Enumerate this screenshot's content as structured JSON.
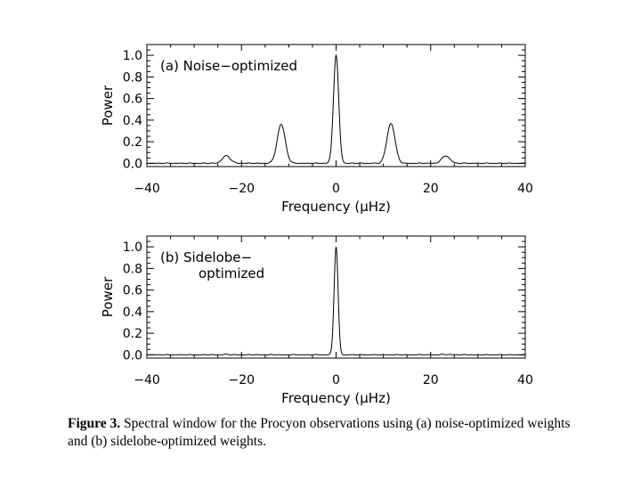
{
  "chart_data": [
    {
      "type": "line",
      "panel": "a",
      "annotation": [
        "(a) Noise−optimized"
      ],
      "xlabel": "Frequency (μHz)",
      "ylabel": "Power",
      "xlim": [
        -40,
        40
      ],
      "ylim": [
        -0.03,
        1.1
      ],
      "xticks": [
        -40,
        -20,
        0,
        20,
        40
      ],
      "xtick_labels": [
        "−40",
        "−20",
        "0",
        "20",
        "40"
      ],
      "yticks": [
        0.0,
        0.2,
        0.4,
        0.6,
        0.8,
        1.0
      ],
      "ytick_labels": [
        "0.0",
        "0.2",
        "0.4",
        "0.6",
        "0.8",
        "1.0"
      ],
      "grid": false,
      "peaks": [
        {
          "x": -23.2,
          "y": 0.07
        },
        {
          "x": -11.6,
          "y": 0.36
        },
        {
          "x": 0,
          "y": 1.0
        },
        {
          "x": 11.6,
          "y": 0.37
        },
        {
          "x": 23.2,
          "y": 0.07
        }
      ]
    },
    {
      "type": "line",
      "panel": "b",
      "annotation": [
        "(b) Sidelobe−",
        "optimized"
      ],
      "xlabel": "Frequency (μHz)",
      "ylabel": "Power",
      "xlim": [
        -40,
        40
      ],
      "ylim": [
        -0.03,
        1.1
      ],
      "xticks": [
        -40,
        -20,
        0,
        20,
        40
      ],
      "xtick_labels": [
        "−40",
        "−20",
        "0",
        "20",
        "40"
      ],
      "yticks": [
        0.0,
        0.2,
        0.4,
        0.6,
        0.8,
        1.0
      ],
      "ytick_labels": [
        "0.0",
        "0.2",
        "0.4",
        "0.6",
        "0.8",
        "1.0"
      ],
      "grid": false,
      "peaks": [
        {
          "x": 0,
          "y": 1.0
        },
        {
          "x": -23.2,
          "y": 0.004
        },
        {
          "x": 23.2,
          "y": 0.004
        }
      ]
    }
  ],
  "caption": {
    "label": "Figure 3.",
    "text": "Spectral window for the Procyon observations using (a) noise-optimized weights and (b) sidelobe-optimized weights."
  }
}
